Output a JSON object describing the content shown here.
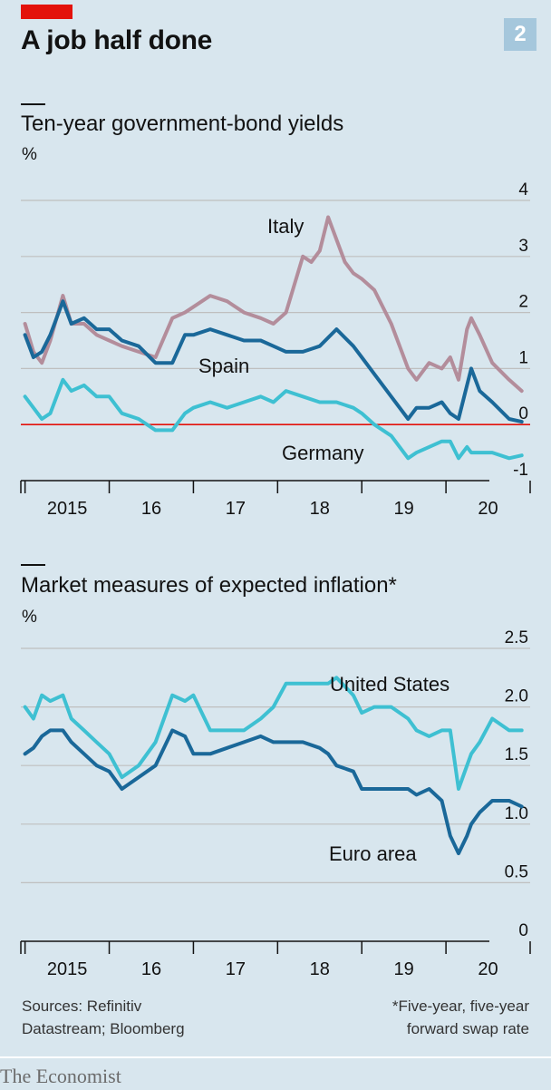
{
  "header": {
    "title": "A job half done",
    "chart_number": "2"
  },
  "footer": {
    "source_line1": "Sources: Refinitiv",
    "source_line2": "Datastream; Bloomberg",
    "note_line1": "*Five-year, five-year",
    "note_line2": "forward swap rate",
    "brand": "The Economist"
  },
  "colors": {
    "background": "#d8e6ee",
    "italy": "#b38d9b",
    "spain": "#1a6899",
    "germany": "#3ec0d2",
    "united_states": "#3ec0d2",
    "euro_area": "#1a6899",
    "zero_line": "#e3120b",
    "grid": "#bfbfbf",
    "brand_red": "#e3120b"
  },
  "chart_data": [
    {
      "type": "line",
      "title": "Ten-year government-bond yields",
      "unit": "%",
      "x_tick_labels": [
        "2015",
        "16",
        "17",
        "18",
        "19",
        "20"
      ],
      "x_range": [
        2014.95,
        2021.0
      ],
      "ylim": [
        -1,
        4
      ],
      "y_ticks": [
        -1,
        0,
        1,
        2,
        3,
        4
      ],
      "y_tick_labels": [
        "-1",
        "0",
        "1",
        "2",
        "3",
        "4"
      ],
      "zero_line": true,
      "grid": true,
      "series": [
        {
          "name": "Italy",
          "x": [
            2015.0,
            2015.1,
            2015.2,
            2015.3,
            2015.45,
            2015.55,
            2015.7,
            2015.85,
            2016.0,
            2016.15,
            2016.35,
            2016.55,
            2016.75,
            2016.9,
            2017.0,
            2017.2,
            2017.4,
            2017.6,
            2017.8,
            2017.95,
            2018.1,
            2018.3,
            2018.4,
            2018.5,
            2018.6,
            2018.8,
            2018.9,
            2019.0,
            2019.15,
            2019.35,
            2019.55,
            2019.65,
            2019.8,
            2019.95,
            2020.05,
            2020.15,
            2020.25,
            2020.3,
            2020.4,
            2020.55,
            2020.75,
            2020.9
          ],
          "y": [
            1.8,
            1.3,
            1.1,
            1.5,
            2.3,
            1.8,
            1.8,
            1.6,
            1.5,
            1.4,
            1.3,
            1.2,
            1.9,
            2.0,
            2.1,
            2.3,
            2.2,
            2.0,
            1.9,
            1.8,
            2.0,
            3.0,
            2.9,
            3.1,
            3.7,
            2.9,
            2.7,
            2.6,
            2.4,
            1.8,
            1.0,
            0.8,
            1.1,
            1.0,
            1.2,
            0.8,
            1.7,
            1.9,
            1.6,
            1.1,
            0.8,
            0.6
          ]
        },
        {
          "name": "Spain",
          "x": [
            2015.0,
            2015.1,
            2015.2,
            2015.3,
            2015.45,
            2015.55,
            2015.7,
            2015.85,
            2016.0,
            2016.15,
            2016.35,
            2016.55,
            2016.75,
            2016.9,
            2017.0,
            2017.2,
            2017.4,
            2017.6,
            2017.8,
            2017.95,
            2018.1,
            2018.3,
            2018.5,
            2018.7,
            2018.9,
            2019.0,
            2019.15,
            2019.35,
            2019.55,
            2019.65,
            2019.8,
            2019.95,
            2020.05,
            2020.15,
            2020.25,
            2020.3,
            2020.4,
            2020.55,
            2020.75,
            2020.9
          ],
          "y": [
            1.6,
            1.2,
            1.3,
            1.6,
            2.2,
            1.8,
            1.9,
            1.7,
            1.7,
            1.5,
            1.4,
            1.1,
            1.1,
            1.6,
            1.6,
            1.7,
            1.6,
            1.5,
            1.5,
            1.4,
            1.3,
            1.3,
            1.4,
            1.7,
            1.4,
            1.2,
            0.9,
            0.5,
            0.1,
            0.3,
            0.3,
            0.4,
            0.2,
            0.1,
            0.7,
            1.0,
            0.6,
            0.4,
            0.1,
            0.05
          ]
        },
        {
          "name": "Germany",
          "x": [
            2015.0,
            2015.1,
            2015.2,
            2015.3,
            2015.45,
            2015.55,
            2015.7,
            2015.85,
            2016.0,
            2016.15,
            2016.35,
            2016.55,
            2016.75,
            2016.9,
            2017.0,
            2017.2,
            2017.4,
            2017.6,
            2017.8,
            2017.95,
            2018.1,
            2018.3,
            2018.5,
            2018.7,
            2018.9,
            2019.0,
            2019.15,
            2019.35,
            2019.55,
            2019.65,
            2019.8,
            2019.95,
            2020.05,
            2020.15,
            2020.25,
            2020.3,
            2020.4,
            2020.55,
            2020.75,
            2020.9
          ],
          "y": [
            0.5,
            0.3,
            0.1,
            0.2,
            0.8,
            0.6,
            0.7,
            0.5,
            0.5,
            0.2,
            0.1,
            -0.1,
            -0.1,
            0.2,
            0.3,
            0.4,
            0.3,
            0.4,
            0.5,
            0.4,
            0.6,
            0.5,
            0.4,
            0.4,
            0.3,
            0.2,
            0.0,
            -0.2,
            -0.6,
            -0.5,
            -0.4,
            -0.3,
            -0.3,
            -0.6,
            -0.4,
            -0.5,
            -0.5,
            -0.5,
            -0.6,
            -0.55
          ]
        }
      ]
    },
    {
      "type": "line",
      "title": "Market measures of expected inflation*",
      "unit": "%",
      "x_tick_labels": [
        "2015",
        "16",
        "17",
        "18",
        "19",
        "20"
      ],
      "x_range": [
        2014.95,
        2021.0
      ],
      "ylim": [
        0,
        2.5
      ],
      "y_ticks": [
        0,
        0.5,
        1.0,
        1.5,
        2.0,
        2.5
      ],
      "y_tick_labels": [
        "0",
        "0.5",
        "1.0",
        "1.5",
        "2.0",
        "2.5"
      ],
      "grid": true,
      "series": [
        {
          "name": "United States",
          "x": [
            2015.0,
            2015.1,
            2015.2,
            2015.3,
            2015.45,
            2015.55,
            2015.7,
            2015.85,
            2016.0,
            2016.15,
            2016.35,
            2016.55,
            2016.75,
            2016.9,
            2017.0,
            2017.2,
            2017.4,
            2017.6,
            2017.8,
            2017.95,
            2018.1,
            2018.3,
            2018.5,
            2018.6,
            2018.7,
            2018.9,
            2019.0,
            2019.15,
            2019.35,
            2019.55,
            2019.65,
            2019.8,
            2019.95,
            2020.05,
            2020.15,
            2020.25,
            2020.3,
            2020.4,
            2020.55,
            2020.75,
            2020.9
          ],
          "y": [
            2.0,
            1.9,
            2.1,
            2.05,
            2.1,
            1.9,
            1.8,
            1.7,
            1.6,
            1.4,
            1.5,
            1.7,
            2.1,
            2.05,
            2.1,
            1.8,
            1.8,
            1.8,
            1.9,
            2.0,
            2.2,
            2.2,
            2.2,
            2.2,
            2.25,
            2.1,
            1.95,
            2.0,
            2.0,
            1.9,
            1.8,
            1.75,
            1.8,
            1.8,
            1.3,
            1.5,
            1.6,
            1.7,
            1.9,
            1.8,
            1.8
          ]
        },
        {
          "name": "Euro area",
          "x": [
            2015.0,
            2015.1,
            2015.2,
            2015.3,
            2015.45,
            2015.55,
            2015.7,
            2015.85,
            2016.0,
            2016.15,
            2016.35,
            2016.55,
            2016.75,
            2016.9,
            2017.0,
            2017.2,
            2017.4,
            2017.6,
            2017.8,
            2017.95,
            2018.1,
            2018.3,
            2018.5,
            2018.6,
            2018.7,
            2018.9,
            2019.0,
            2019.15,
            2019.35,
            2019.55,
            2019.65,
            2019.8,
            2019.95,
            2020.05,
            2020.15,
            2020.25,
            2020.3,
            2020.4,
            2020.55,
            2020.75,
            2020.9
          ],
          "y": [
            1.6,
            1.65,
            1.75,
            1.8,
            1.8,
            1.7,
            1.6,
            1.5,
            1.45,
            1.3,
            1.4,
            1.5,
            1.8,
            1.75,
            1.6,
            1.6,
            1.65,
            1.7,
            1.75,
            1.7,
            1.7,
            1.7,
            1.65,
            1.6,
            1.5,
            1.45,
            1.3,
            1.3,
            1.3,
            1.3,
            1.25,
            1.3,
            1.2,
            0.9,
            0.75,
            0.9,
            1.0,
            1.1,
            1.2,
            1.2,
            1.15
          ]
        }
      ]
    }
  ]
}
